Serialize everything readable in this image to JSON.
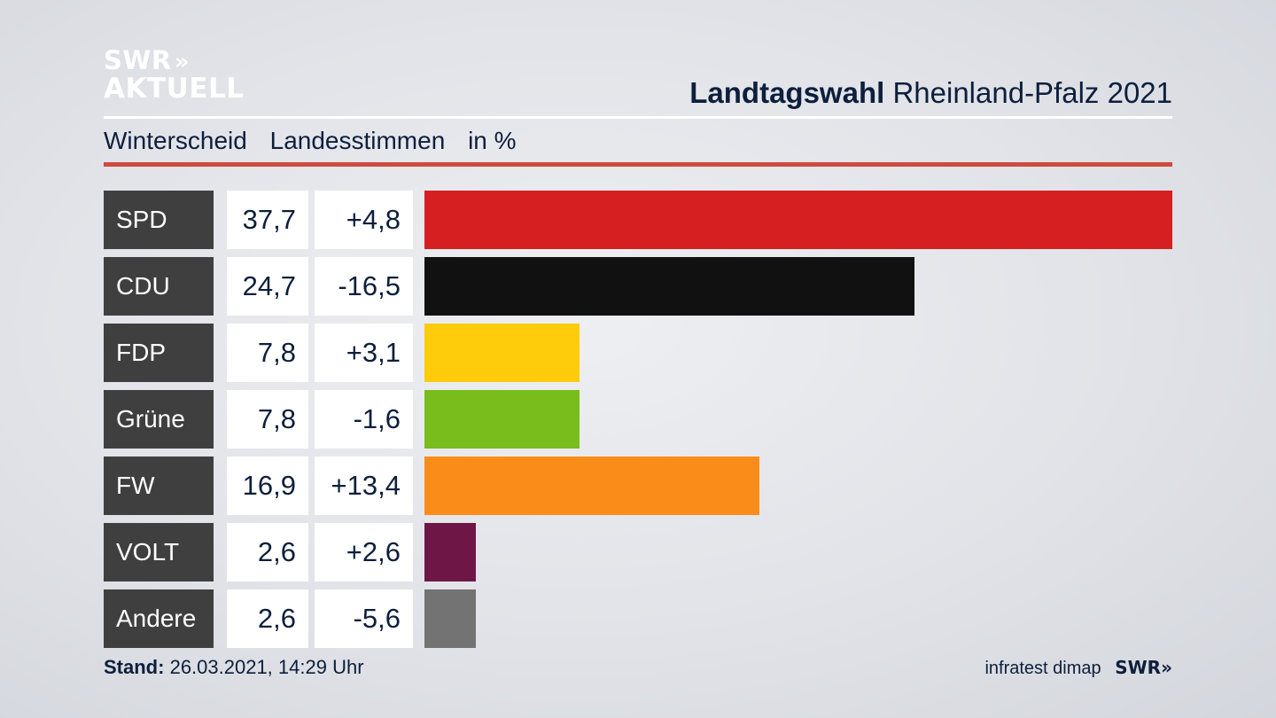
{
  "branding": {
    "logo_line1": "SWR",
    "logo_chevrons": "»",
    "logo_line2": "AKTUELL"
  },
  "header": {
    "title_bold": "Landtagswahl",
    "title_rest": "Rheinland-Pfalz 2021",
    "subtitle_place": "Winterscheid",
    "subtitle_measure": "Landesstimmen",
    "subtitle_unit": "in %"
  },
  "footer": {
    "stand_label": "Stand:",
    "stand_value": "26.03.2021, 14:29 Uhr",
    "source": "infratest dimap",
    "source_logo": "SWR»"
  },
  "chart_data": {
    "type": "bar",
    "orientation": "horizontal",
    "categories": [
      "SPD",
      "CDU",
      "FDP",
      "Grüne",
      "FW",
      "VOLT",
      "Andere"
    ],
    "values": [
      37.7,
      24.7,
      7.8,
      7.8,
      16.9,
      2.6,
      2.6
    ],
    "value_labels": [
      "37,7",
      "24,7",
      "7,8",
      "7,8",
      "16,9",
      "2,6",
      "2,6"
    ],
    "change_labels": [
      "+4,8",
      "-16,5",
      "+3,1",
      "-1,6",
      "+13,4",
      "+2,6",
      "-5,6"
    ],
    "colors": [
      "#d61f20",
      "#111111",
      "#fecc0b",
      "#78bd1c",
      "#fa8c19",
      "#6e1746",
      "#737373"
    ],
    "xlim": [
      0,
      37.7
    ],
    "grid": false
  }
}
